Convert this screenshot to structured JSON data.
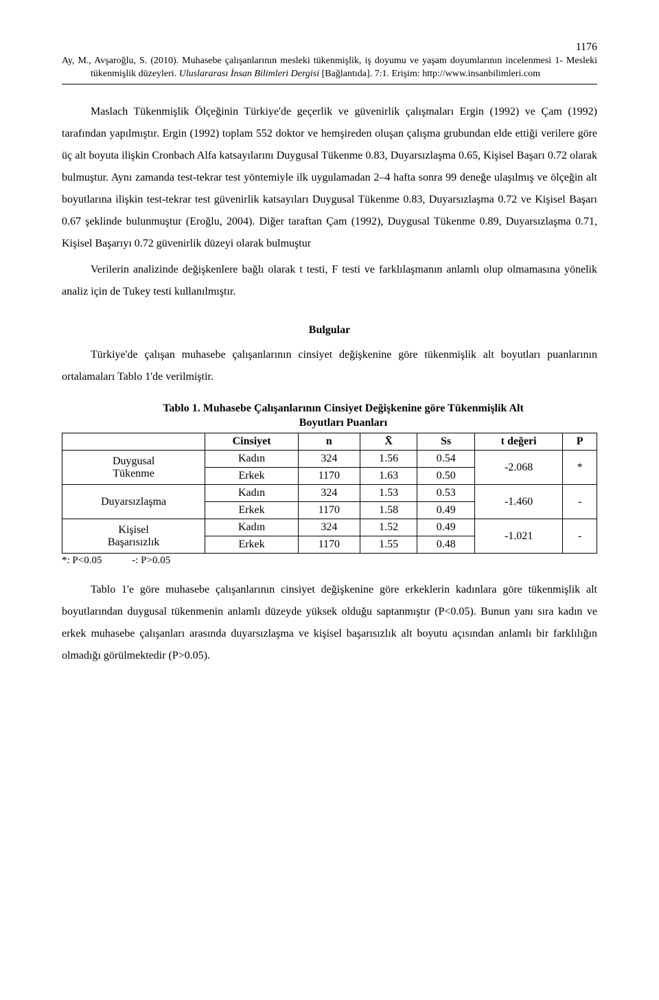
{
  "page_number": "1176",
  "citation": {
    "line1_pre": "Ay, M., Avşaroğlu, S. (2010). Muhasebe çalışanlarının mesleki tükenmişlik, iş doyumu ve yaşam",
    "line2": "doyumlarının incelenmesi 1- Mesleki tükenmişlik düzeyleri. ",
    "italic": "Uluslararası İnsan Bilimleri Dergisi",
    "line3": "[Bağlantıda]. 7:1. Erişim: http://www.insanbilimleri.com"
  },
  "paragraphs": {
    "p1": "Maslach Tükenmişlik Ölçeğinin Türkiye'de geçerlik ve güvenirlik çalışmaları Ergin (1992) ve Çam (1992) tarafından yapılmıştır. Ergin (1992) toplam 552 doktor ve hemşireden oluşan çalışma grubundan elde ettiği verilere göre üç alt boyuta ilişkin Cronbach Alfa katsayılarını Duygusal Tükenme 0.83, Duyarsızlaşma 0.65, Kişisel Başarı 0.72 olarak bulmuştur. Aynı zamanda test-tekrar test yöntemiyle ilk uygulamadan 2–4 hafta sonra 99 deneğe ulaşılmış ve ölçeğin alt boyutlarına ilişkin test-tekrar test güvenirlik katsayıları Duygusal Tükenme 0.83, Duyarsızlaşma 0.72 ve Kişisel Başarı 0.67 şeklinde bulunmuştur (Eroğlu, 2004). Diğer taraftan Çam (1992), Duygusal Tükenme 0.89, Duyarsızlaşma 0.71, Kişisel Başarıyı 0.72 güvenirlik düzeyi olarak bulmuştur",
    "p2": "Verilerin analizinde değişkenlere bağlı olarak t testi, F testi ve farklılaşmanın anlamlı olup olmamasına yönelik analiz için de Tukey testi kullanılmıştır.",
    "p3": "Türkiye'de çalışan muhasebe çalışanlarının cinsiyet değişkenine göre tükenmişlik alt boyutları puanlarının ortalamaları Tablo 1'de verilmiştir.",
    "p4": "Tablo 1'e göre muhasebe çalışanlarının cinsiyet değişkenine göre erkeklerin kadınlara göre tükenmişlik alt boyutlarından duygusal tükenmenin anlamlı düzeyde yüksek olduğu saptanmıştır (P<0.05). Bunun yanı sıra kadın ve erkek muhasebe çalışanları arasında duyarsızlaşma ve kişisel başarısızlık alt boyutu açısından anlamlı bir farklılığın olmadığı görülmektedir (P>0.05)."
  },
  "section_heading": "Bulgular",
  "table": {
    "caption_l1": "Tablo 1. Muhasebe Çalışanlarının Cinsiyet Değişkenine göre Tükenmişlik Alt",
    "caption_l2": "Boyutları Puanları",
    "columns": [
      "",
      "Cinsiyet",
      "n",
      "X̄",
      "Ss",
      "t değeri",
      "P"
    ],
    "groups": [
      {
        "label": "Duygusal\nTükenme",
        "rows": [
          {
            "cinsiyet": "Kadın",
            "n": "324",
            "mean": "1.56",
            "ss": "0.54"
          },
          {
            "cinsiyet": "Erkek",
            "n": "1170",
            "mean": "1.63",
            "ss": "0.50"
          }
        ],
        "t": "-2.068",
        "p": "*"
      },
      {
        "label": "Duyarsızlaşma",
        "rows": [
          {
            "cinsiyet": "Kadın",
            "n": "324",
            "mean": "1.53",
            "ss": "0.53"
          },
          {
            "cinsiyet": "Erkek",
            "n": "1170",
            "mean": "1.58",
            "ss": "0.49"
          }
        ],
        "t": "-1.460",
        "p": "-"
      },
      {
        "label": "Kişisel\nBaşarısızlık",
        "rows": [
          {
            "cinsiyet": "Kadın",
            "n": "324",
            "mean": "1.52",
            "ss": "0.49"
          },
          {
            "cinsiyet": "Erkek",
            "n": "1170",
            "mean": "1.55",
            "ss": "0.48"
          }
        ],
        "t": "-1.021",
        "p": "-"
      }
    ],
    "footnote_a": "*: P<0.05",
    "footnote_b": "-: P>0.05"
  }
}
